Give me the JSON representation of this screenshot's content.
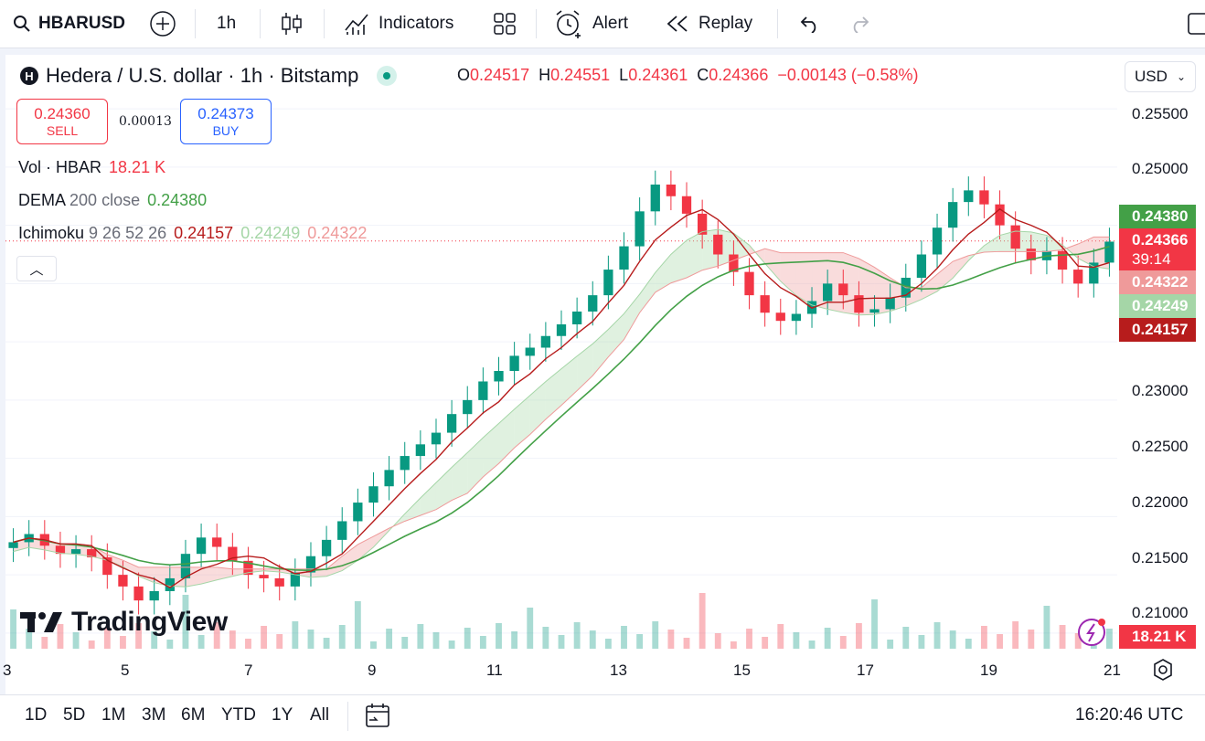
{
  "toolbar": {
    "symbol": "HBARUSD",
    "interval": "1h",
    "indicators": "Indicators",
    "alert": "Alert",
    "replay": "Replay"
  },
  "header": {
    "title": "Hedera / U.S. dollar · 1h · Bitstamp",
    "logo_letter": "H",
    "ohlc": {
      "o_label": "O",
      "o": "0.24517",
      "h_label": "H",
      "h": "0.24551",
      "l_label": "L",
      "l": "0.24361",
      "c_label": "C",
      "c": "0.24366",
      "change": "−0.00143 (−0.58%)"
    },
    "currency": "USD"
  },
  "trade": {
    "sell_price": "0.24360",
    "sell_label": "SELL",
    "spread": "0.00013",
    "buy_price": "0.24373",
    "buy_label": "BUY"
  },
  "indicators": {
    "vol_name": "Vol · HBAR",
    "vol_value": "18.21 K",
    "dema_name": "DEMA",
    "dema_params": "200 close",
    "dema_value": "0.24380",
    "ichi_name": "Ichimoku",
    "ichi_params": "9 26 52 26",
    "ichi_v1": "0.24157",
    "ichi_v2": "0.24249",
    "ichi_v3": "0.24322"
  },
  "price_axis": [
    "0.25500",
    "0.25000",
    "0.23000",
    "0.22500",
    "0.22000",
    "0.21500",
    "0.21000"
  ],
  "price_tags": {
    "dema": "0.24380",
    "last": "0.24366",
    "countdown": "39:14",
    "span_b": "0.24322",
    "span_a": "0.24249",
    "base": "0.24157",
    "volume": "18.21 K"
  },
  "time_axis": [
    "3",
    "5",
    "7",
    "9",
    "11",
    "13",
    "15",
    "17",
    "19",
    "21"
  ],
  "ranges": [
    "1D",
    "5D",
    "1M",
    "3M",
    "6M",
    "YTD",
    "1Y",
    "All"
  ],
  "clock": "16:20:46 UTC",
  "watermark": "TradingView",
  "colors": {
    "up": "#089981",
    "down": "#f23645",
    "dema": "#43a047",
    "conversion": "#b71c1c",
    "span_a": "#a5d6a7",
    "span_b": "#ef9a9a",
    "buy": "#2962ff"
  },
  "chart_data": {
    "type": "candlestick",
    "price_range": [
      0.2085,
      0.2565
    ],
    "close_series": [
      0.2178,
      0.2185,
      0.2175,
      0.2168,
      0.2172,
      0.2165,
      0.215,
      0.214,
      0.2128,
      0.2136,
      0.2147,
      0.2168,
      0.2182,
      0.2174,
      0.2162,
      0.215,
      0.2147,
      0.214,
      0.2152,
      0.2166,
      0.218,
      0.2196,
      0.2212,
      0.2226,
      0.224,
      0.2252,
      0.2262,
      0.2272,
      0.2288,
      0.23,
      0.2316,
      0.2325,
      0.2338,
      0.2345,
      0.2355,
      0.2365,
      0.2376,
      0.239,
      0.2412,
      0.2432,
      0.2462,
      0.2485,
      0.2475,
      0.246,
      0.2442,
      0.2425,
      0.241,
      0.239,
      0.2375,
      0.2368,
      0.2374,
      0.2385,
      0.24,
      0.239,
      0.2375,
      0.2378,
      0.2388,
      0.2405,
      0.2425,
      0.2448,
      0.247,
      0.248,
      0.2468,
      0.245,
      0.243,
      0.242,
      0.2428,
      0.2412,
      0.24,
      0.2418,
      0.2436
    ]
  }
}
